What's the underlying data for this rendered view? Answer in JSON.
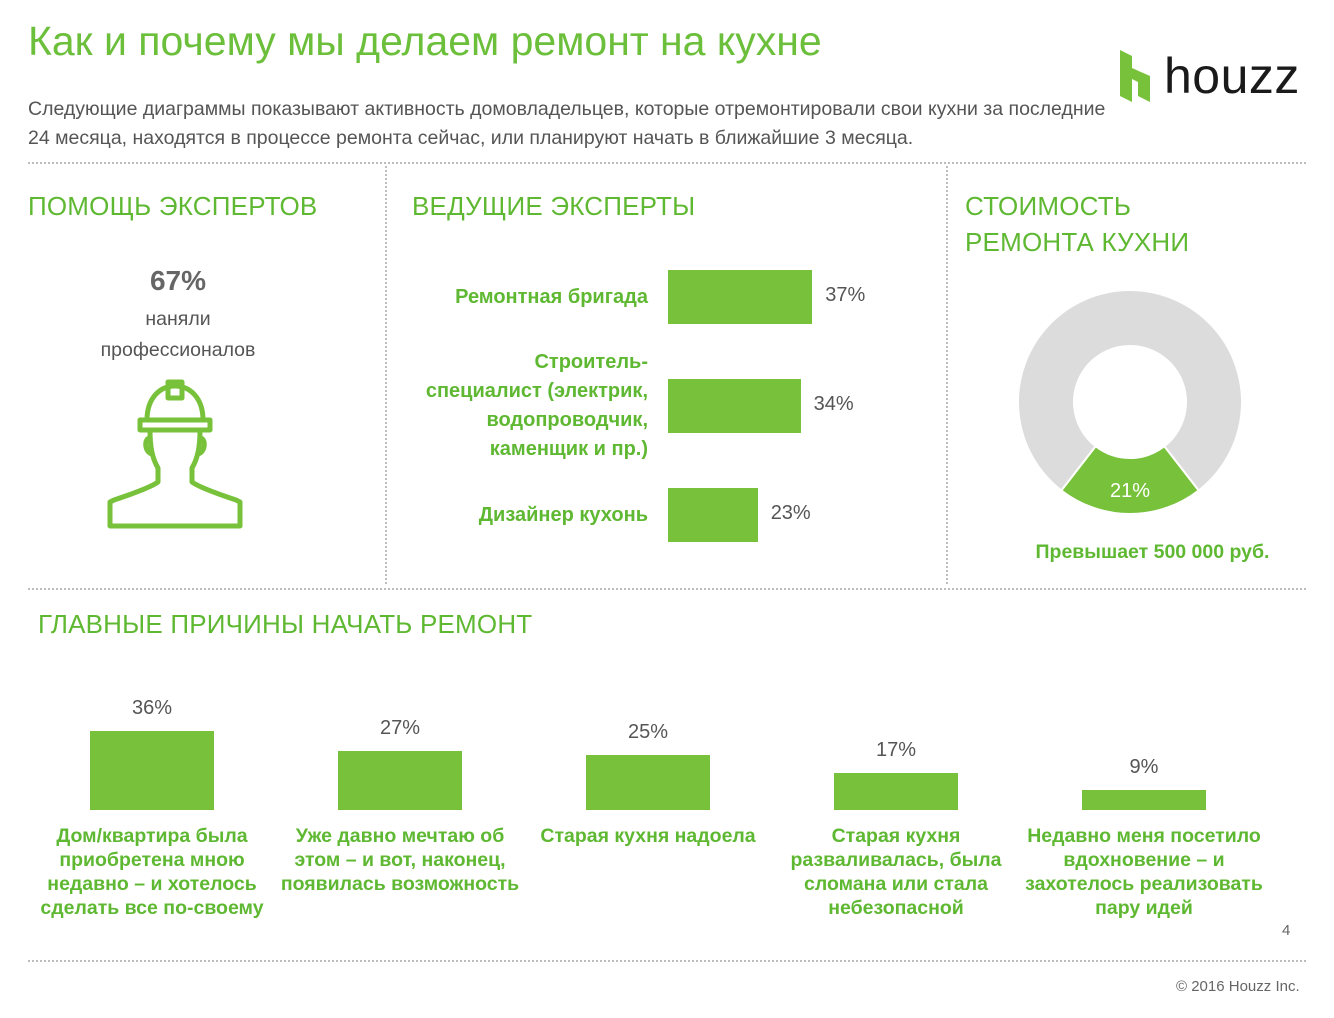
{
  "header": {
    "title": "Как и почему мы делаем ремонт на кухне",
    "subtitle": "Следующие диаграммы показывают активность домовладельцев, которые отремонтировали свои кухни за последние 24 месяца, находятся в процессе ремонта сейчас, или планируют начать в ближайшие 3 месяца.",
    "logo_text": "houzz",
    "brand_color": "#77c23a"
  },
  "expert_help": {
    "title": "ПОМОЩЬ ЭКСПЕРТОВ",
    "percent": "67%",
    "line1": "наняли",
    "line2": "профессионалов",
    "icon": "worker-helmet-icon"
  },
  "lead_experts": {
    "title": "ВЕДУЩИЕ ЭКСПЕРТЫ",
    "items": [
      {
        "label_lines": [
          "Ремонтная бригада"
        ],
        "value_label": "37%"
      },
      {
        "label_lines": [
          "Строитель-",
          "специалист (электрик,",
          "водопроводчик,",
          "каменщик и пр.)"
        ],
        "value_label": "34%"
      },
      {
        "label_lines": [
          "Дизайнер кухонь"
        ],
        "value_label": "23%"
      }
    ]
  },
  "cost": {
    "title_line1": "СТОИМОСТЬ",
    "title_line2": "РЕМОНТА КУХНИ",
    "slice_label": "21%",
    "caption": "Превышает 500 000 руб."
  },
  "reasons": {
    "title": "ГЛАВНЫЕ ПРИЧИНЫ НАЧАТЬ РЕМОНТ",
    "items": [
      {
        "value_label": "36%",
        "label_lines": [
          "Дом/квартира была",
          "приобретена мною",
          "недавно – и хотелось",
          "сделать все по-своему"
        ]
      },
      {
        "value_label": "27%",
        "label_lines": [
          "Уже давно мечтаю об",
          "этом – и вот, наконец,",
          "появилась возможность"
        ]
      },
      {
        "value_label": "25%",
        "label_lines": [
          "Старая кухня надоела"
        ]
      },
      {
        "value_label": "17%",
        "label_lines": [
          "Старая кухня",
          "разваливалась, была",
          "сломана или стала",
          "небезопасной"
        ]
      },
      {
        "value_label": "9%",
        "label_lines": [
          "Недавно меня посетило",
          "вдохновение – и",
          "захотелось реализовать",
          "пару идей"
        ]
      }
    ]
  },
  "footer": {
    "page_number": "4",
    "copyright": "© 2016 Houzz Inc."
  },
  "chart_data": [
    {
      "type": "bar",
      "orientation": "horizontal",
      "title": "ВЕДУЩИЕ ЭКСПЕРТЫ",
      "categories": [
        "Ремонтная бригада",
        "Строитель-специалист (электрик, водопроводчик, каменщик и пр.)",
        "Дизайнер кухонь"
      ],
      "values": [
        37,
        34,
        23
      ],
      "unit": "%"
    },
    {
      "type": "pie",
      "title": "СТОИМОСТЬ РЕМОНТА КУХНИ",
      "slices": [
        {
          "label": "Превышает 500 000 руб.",
          "value": 21
        },
        {
          "label": "",
          "value": 79
        }
      ],
      "colors": [
        "#77c23a",
        "#dcdcdc"
      ],
      "unit": "%"
    },
    {
      "type": "bar",
      "orientation": "vertical",
      "title": "ГЛАВНЫЕ ПРИЧИНЫ НАЧАТЬ РЕМОНТ",
      "categories": [
        "Дом/квартира была приобретена мною недавно – и хотелось сделать все по-своему",
        "Уже давно мечтаю об этом – и вот, наконец, появилась возможность",
        "Старая кухня надоела",
        "Старая кухня разваливалась, была сломана или стала небезопасной",
        "Недавно меня посетило вдохновение – и захотелось реализовать пару идей"
      ],
      "values": [
        36,
        27,
        25,
        17,
        9
      ],
      "unit": "%"
    }
  ]
}
